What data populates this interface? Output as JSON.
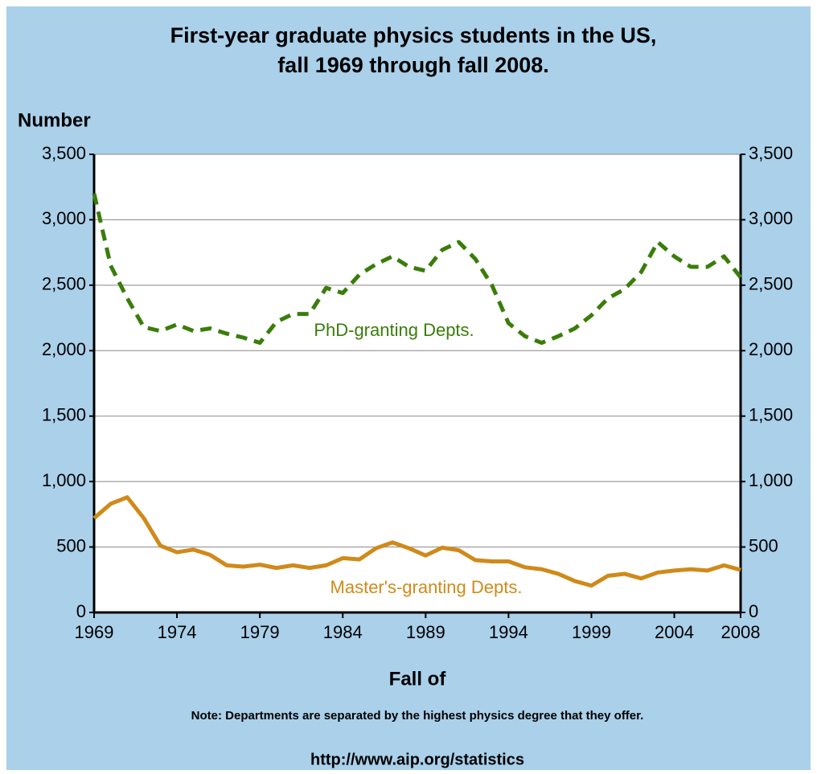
{
  "chart_data": {
    "type": "line",
    "title": [
      "First-year graduate physics students in the US,",
      "fall 1969 through fall 2008."
    ],
    "y_label": "Number",
    "x_label": "Fall of",
    "note": "Note: Departments are separated by the highest physics degree that they offer.",
    "source": "http://www.aip.org/statistics",
    "annotations": [
      "PhD-granting Depts.",
      "Master's-granting Depts."
    ],
    "x": [
      1969,
      1970,
      1971,
      1972,
      1973,
      1974,
      1975,
      1976,
      1977,
      1978,
      1979,
      1980,
      1981,
      1982,
      1983,
      1984,
      1985,
      1986,
      1987,
      1988,
      1989,
      1990,
      1991,
      1992,
      1993,
      1994,
      1995,
      1996,
      1997,
      1998,
      1999,
      2000,
      2001,
      2002,
      2003,
      2004,
      2005,
      2006,
      2007,
      2008
    ],
    "series": [
      {
        "name": "PhD-granting Depts.",
        "color": "#3a7d0a",
        "dashed": true,
        "values": [
          3200,
          2650,
          2400,
          2180,
          2150,
          2200,
          2150,
          2170,
          2130,
          2100,
          2060,
          2220,
          2280,
          2280,
          2480,
          2440,
          2580,
          2660,
          2720,
          2640,
          2610,
          2770,
          2830,
          2700,
          2500,
          2210,
          2110,
          2060,
          2110,
          2170,
          2270,
          2400,
          2470,
          2600,
          2830,
          2720,
          2640,
          2640,
          2720,
          2560
        ]
      },
      {
        "name": "Master's-granting Depts.",
        "color": "#d08a1a",
        "dashed": false,
        "values": [
          720,
          830,
          880,
          720,
          510,
          460,
          480,
          440,
          360,
          350,
          365,
          340,
          360,
          340,
          360,
          415,
          405,
          490,
          535,
          490,
          435,
          495,
          475,
          400,
          390,
          390,
          345,
          330,
          295,
          240,
          205,
          280,
          295,
          260,
          305,
          320,
          330,
          320,
          360,
          325
        ]
      }
    ],
    "xlim": [
      1969,
      2008
    ],
    "xticks": [
      1969,
      1974,
      1979,
      1984,
      1989,
      1994,
      1999,
      2004,
      2008
    ],
    "ylim": [
      0,
      3500
    ],
    "yticks": [
      0,
      500,
      {
        "value": 1000,
        "label": "1,000"
      },
      {
        "value": 1500,
        "label": "1,500"
      },
      {
        "value": 2000,
        "label": "2,000"
      },
      {
        "value": 2500,
        "label": "2,500"
      },
      {
        "value": 3000,
        "label": "3,000"
      },
      {
        "value": 3500,
        "label": "3,500"
      }
    ],
    "y2lim": [
      0,
      3500
    ],
    "y2ticks": [
      0,
      500,
      {
        "value": 1000,
        "label": "1,000"
      },
      {
        "value": 1500,
        "label": "1,500"
      },
      {
        "value": 2000,
        "label": "2,000"
      },
      {
        "value": 2500,
        "label": "2,500"
      },
      {
        "value": 3000,
        "label": "3,000"
      },
      {
        "value": 3500,
        "label": "3,500"
      }
    ],
    "grid": true
  }
}
